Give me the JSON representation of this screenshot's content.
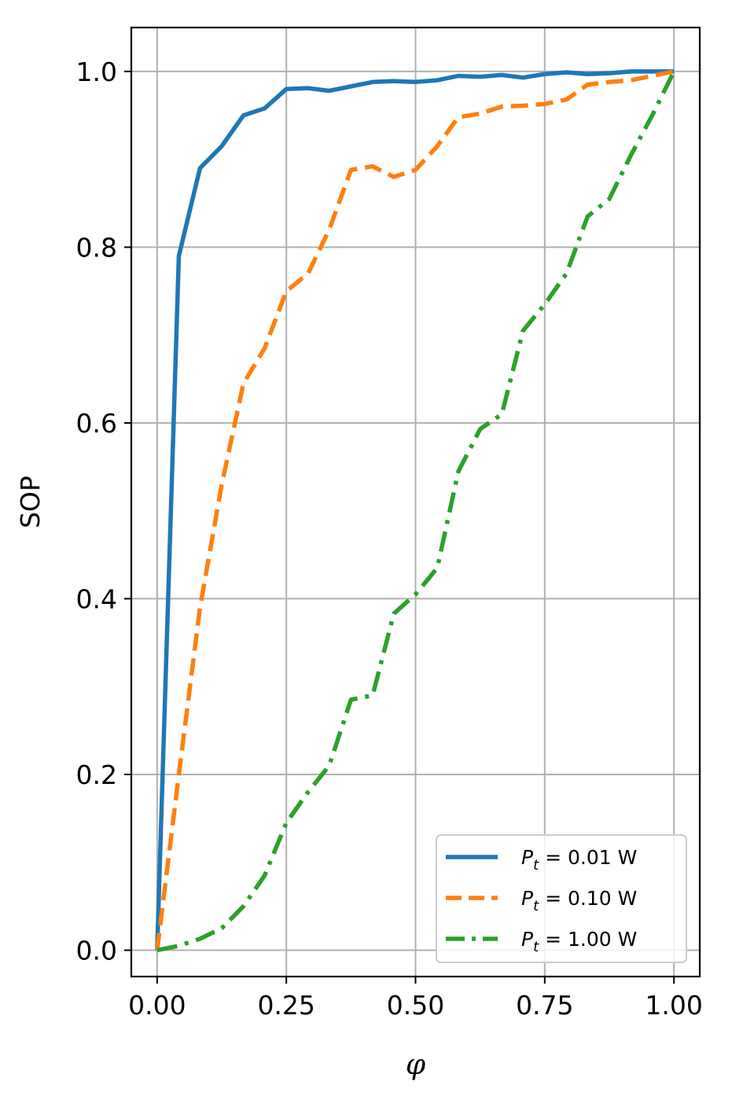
{
  "chart_data": {
    "type": "line",
    "xlabel": "φ",
    "ylabel": "SOP",
    "xlim": [
      -0.05,
      1.05
    ],
    "ylim": [
      -0.03,
      1.05
    ],
    "xticks": [
      0.0,
      0.25,
      0.5,
      0.75,
      1.0
    ],
    "xtick_labels": [
      "0.00",
      "0.25",
      "0.50",
      "0.75",
      "1.00"
    ],
    "yticks": [
      0.0,
      0.2,
      0.4,
      0.6,
      0.8,
      1.0
    ],
    "ytick_labels": [
      "0.0",
      "0.2",
      "0.4",
      "0.6",
      "0.8",
      "1.0"
    ],
    "grid": true,
    "legend_position": "bottom-right",
    "x": [
      0.0,
      0.042,
      0.083,
      0.125,
      0.167,
      0.208,
      0.25,
      0.292,
      0.333,
      0.375,
      0.417,
      0.458,
      0.5,
      0.542,
      0.583,
      0.625,
      0.667,
      0.708,
      0.75,
      0.792,
      0.833,
      0.875,
      0.917,
      0.958,
      1.0
    ],
    "series": [
      {
        "legend_main": "P",
        "legend_sub": "t",
        "legend_rest": " = 0.01 W",
        "color": "#1f77b4",
        "dash": "solid",
        "values": [
          0.0,
          0.79,
          0.89,
          0.915,
          0.95,
          0.958,
          0.98,
          0.981,
          0.978,
          0.983,
          0.988,
          0.989,
          0.988,
          0.99,
          0.995,
          0.994,
          0.996,
          0.993,
          0.997,
          0.999,
          0.997,
          0.998,
          1.0,
          1.0,
          1.0
        ]
      },
      {
        "legend_main": "P",
        "legend_sub": "t",
        "legend_rest": " = 0.10 W",
        "color": "#ff7f0e",
        "dash": "dashed",
        "values": [
          0.0,
          0.2,
          0.39,
          0.53,
          0.645,
          0.685,
          0.75,
          0.77,
          0.82,
          0.888,
          0.892,
          0.88,
          0.888,
          0.915,
          0.948,
          0.952,
          0.96,
          0.961,
          0.963,
          0.968,
          0.985,
          0.988,
          0.99,
          0.995,
          1.0
        ]
      },
      {
        "legend_main": "P",
        "legend_sub": "t",
        "legend_rest": " = 1.00 W",
        "color": "#2ca02c",
        "dash": "dashdot",
        "values": [
          0.0,
          0.005,
          0.013,
          0.025,
          0.05,
          0.085,
          0.145,
          0.18,
          0.21,
          0.285,
          0.29,
          0.383,
          0.405,
          0.435,
          0.545,
          0.593,
          0.61,
          0.705,
          0.735,
          0.77,
          0.835,
          0.855,
          0.905,
          0.95,
          1.0
        ]
      }
    ]
  }
}
